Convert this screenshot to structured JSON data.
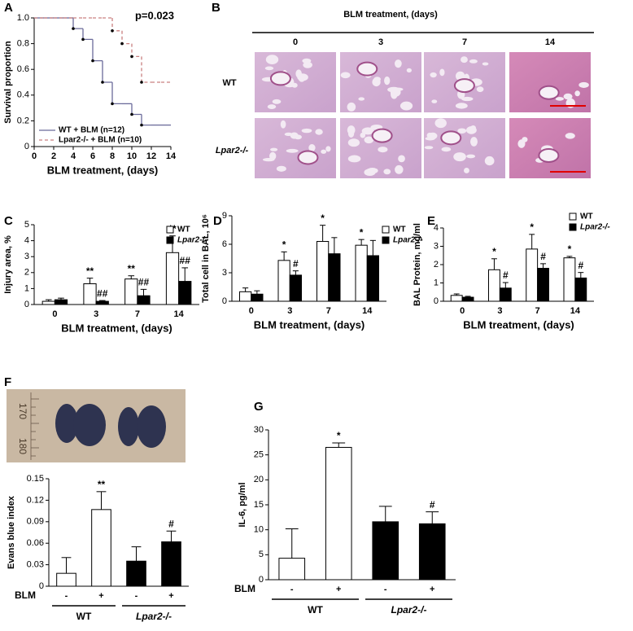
{
  "chart_data": [
    {
      "panel": "A",
      "type": "line",
      "step": true,
      "annotation": "p=0.023",
      "xlabel": "BLM treatment, (days)",
      "ylabel": "Survival proportion",
      "x": [
        0,
        1,
        2,
        3,
        4,
        5,
        6,
        7,
        8,
        9,
        10,
        11,
        12,
        13,
        14
      ],
      "xlim": [
        0,
        14
      ],
      "xticks": [
        0,
        2,
        4,
        6,
        8,
        10,
        12,
        14
      ],
      "ylim": [
        0,
        1
      ],
      "yticks": [
        0,
        0.2,
        0.4,
        0.6,
        0.8,
        {
          "value": 1,
          "label": "1.0"
        }
      ],
      "series": [
        {
          "name": "WT + BLM (n=12)",
          "color": "#6b6b9a",
          "dash": false,
          "values": [
            1,
            1,
            1,
            1,
            0.917,
            0.833,
            0.667,
            0.5,
            0.333,
            0.333,
            0.25,
            0.167,
            0.167,
            0.167,
            0.167
          ]
        },
        {
          "name": "Lpar2-/- + BLM (n=10)",
          "color": "#c98080",
          "dash": true,
          "values": [
            1,
            1,
            1,
            1,
            1,
            1,
            1,
            1,
            0.9,
            0.8,
            0.7,
            0.5,
            0.5,
            0.5,
            0.5
          ]
        }
      ]
    },
    {
      "panel": "C",
      "type": "bar",
      "xlabel": "BLM treatment, (days)",
      "ylabel": "Injury area, %",
      "categories": [
        "0",
        "3",
        "7",
        "14"
      ],
      "ylim": [
        0,
        5
      ],
      "yticks": [
        0,
        1,
        2,
        3,
        4,
        5
      ],
      "series": [
        {
          "name": "WT",
          "color": "#ffffff",
          "values": [
            0.2,
            1.3,
            1.6,
            3.25
          ],
          "errors": [
            0.1,
            0.35,
            0.2,
            1.05
          ],
          "sig": [
            null,
            "**",
            "**",
            "**"
          ]
        },
        {
          "name": "Lpar2-/-",
          "color": "#000000",
          "values": [
            0.3,
            0.2,
            0.55,
            1.45
          ],
          "errors": [
            0.1,
            0.05,
            0.4,
            0.85
          ],
          "sig": [
            null,
            "##",
            "##",
            "##"
          ]
        }
      ]
    },
    {
      "panel": "D",
      "type": "bar",
      "xlabel": "BLM treatment, (days)",
      "ylabel": "Total cell in BAL, 10⁶",
      "categories": [
        "0",
        "3",
        "7",
        "14"
      ],
      "ylim": [
        0,
        9
      ],
      "yticks": [
        0,
        3,
        6,
        9
      ],
      "series": [
        {
          "name": "WT",
          "color": "#ffffff",
          "values": [
            1.0,
            4.3,
            6.3,
            5.9
          ],
          "errors": [
            0.4,
            0.9,
            1.7,
            0.6
          ],
          "sig": [
            null,
            "*",
            "*",
            "*"
          ]
        },
        {
          "name": "Lpar2-/-",
          "color": "#000000",
          "values": [
            0.75,
            2.75,
            5.0,
            4.8
          ],
          "errors": [
            0.35,
            0.45,
            1.7,
            1.6
          ],
          "sig": [
            null,
            "#",
            null,
            null
          ]
        }
      ]
    },
    {
      "panel": "E",
      "type": "bar",
      "xlabel": "BLM treatment, (days)",
      "ylabel": "BAL Protein, mg/ml",
      "categories": [
        "0",
        "3",
        "7",
        "14"
      ],
      "ylim": [
        0,
        4
      ],
      "yticks": [
        0,
        1,
        2,
        3,
        4
      ],
      "series": [
        {
          "name": "WT",
          "color": "#ffffff",
          "values": [
            0.32,
            1.72,
            2.85,
            2.37
          ],
          "errors": [
            0.08,
            0.6,
            0.8,
            0.08
          ],
          "sig": [
            null,
            "*",
            "*",
            "*"
          ]
        },
        {
          "name": "Lpar2-/-",
          "color": "#000000",
          "values": [
            0.22,
            0.72,
            1.8,
            1.27
          ],
          "errors": [
            0.05,
            0.3,
            0.25,
            0.3
          ],
          "sig": [
            null,
            "#",
            "#",
            "#"
          ]
        }
      ]
    },
    {
      "panel": "F",
      "type": "bar",
      "ylabel": "Evans blue index",
      "row_label": "BLM",
      "categories": [
        "-",
        "+",
        "-",
        "+"
      ],
      "groups": [
        "WT",
        "Lpar2-/-"
      ],
      "ylim": [
        0,
        0.15
      ],
      "yticks": [
        0,
        0.03,
        0.06,
        0.09,
        0.12,
        0.15
      ],
      "values": [
        0.018,
        0.107,
        0.035,
        0.062
      ],
      "errors": [
        0.022,
        0.025,
        0.02,
        0.015
      ],
      "colors": [
        "#ffffff",
        "#ffffff",
        "#000000",
        "#000000"
      ],
      "sig": [
        null,
        "**",
        null,
        "#"
      ]
    },
    {
      "panel": "G",
      "type": "bar",
      "ylabel": "IL-6, pg/ml",
      "row_label": "BLM",
      "categories": [
        "-",
        "+",
        "-",
        "+"
      ],
      "groups": [
        "WT",
        "Lpar2-/-"
      ],
      "ylim": [
        0,
        30
      ],
      "yticks": [
        0,
        5,
        10,
        15,
        20,
        25,
        30
      ],
      "values": [
        4.3,
        26.5,
        11.6,
        11.2
      ],
      "errors": [
        5.9,
        0.9,
        3.1,
        2.4
      ],
      "colors": [
        "#ffffff",
        "#ffffff",
        "#000000",
        "#000000"
      ],
      "sig": [
        null,
        "*",
        null,
        "#"
      ]
    }
  ],
  "histology": {
    "panel": "B",
    "title": "BLM treatment, (days)",
    "columns": [
      "0",
      "3",
      "7",
      "14"
    ],
    "rows": [
      "WT",
      "Lpar2-/-"
    ]
  },
  "photo": {
    "ruler_labels": [
      "170",
      "180"
    ]
  }
}
